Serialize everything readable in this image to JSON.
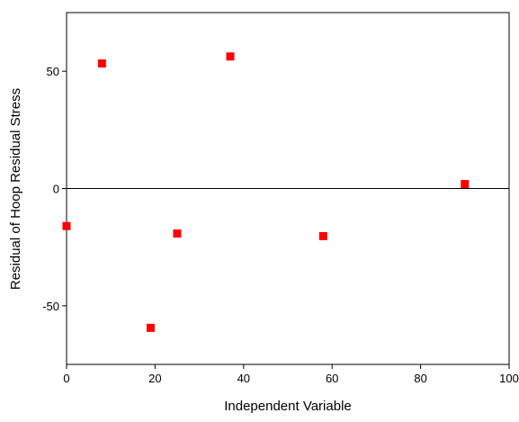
{
  "chart_data": {
    "type": "scatter",
    "x_label": "Independent Variable",
    "y_label": "Residual of Hoop Residual Stress",
    "series": [
      {
        "name": "Residual",
        "color": "#ff0000",
        "x": [
          0,
          8,
          19,
          25,
          37,
          58,
          90
        ],
        "values": [
          -16,
          53.3,
          -59.4,
          -19.2,
          56.3,
          -20.3,
          1.9
        ]
      }
    ],
    "xlim": [
      0,
      100
    ],
    "xticks": [
      0,
      20,
      40,
      60,
      80,
      100
    ],
    "ylim": [
      -75,
      75
    ],
    "yticks": [
      -50,
      0,
      50
    ],
    "hline": 0
  }
}
